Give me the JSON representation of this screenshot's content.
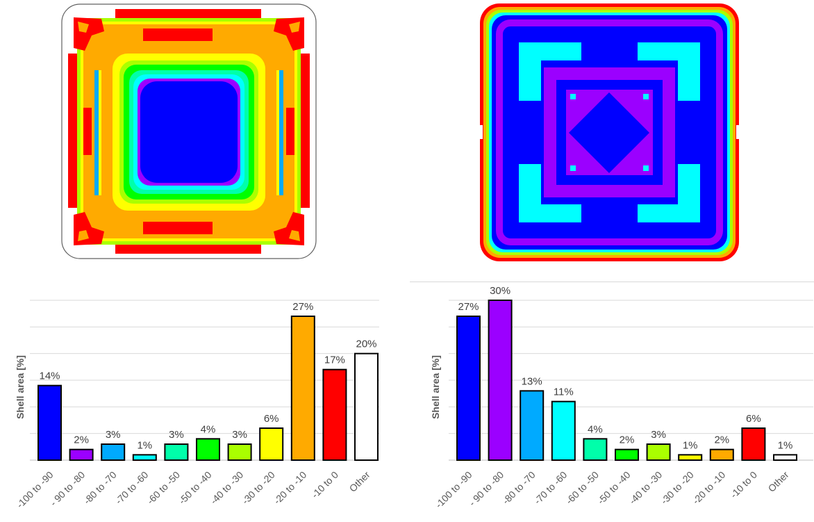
{
  "maps": [
    {
      "name": "left",
      "frame": true
    },
    {
      "name": "right",
      "frame": false
    }
  ],
  "chart_data": [
    {
      "type": "bar",
      "ylabel": "Shell area [%]",
      "ylim": [
        0,
        30
      ],
      "grid": true,
      "categories": [
        "-100 to -90",
        "- 90 to -80",
        "-80 to -70",
        "-70 to -60",
        "-60 to -50",
        "-50 to -40",
        "-40 to -30",
        "-30 to -20",
        "-20 to -10",
        "-10 to 0",
        "Other"
      ],
      "values": [
        14,
        2,
        3,
        1,
        3,
        4,
        3,
        6,
        27,
        17,
        20
      ],
      "labels": [
        "14%",
        "2%",
        "3%",
        "1%",
        "3%",
        "4%",
        "3%",
        "6%",
        "27%",
        "17%",
        "20%"
      ],
      "colors": [
        "#0000ff",
        "#9b00ff",
        "#00aaff",
        "#00ffff",
        "#00ffaa",
        "#00ff00",
        "#aaff00",
        "#ffff00",
        "#ffaa00",
        "#ff0000",
        "#ffffff"
      ]
    },
    {
      "type": "bar",
      "ylabel": "Shell area [%]",
      "ylim": [
        0,
        30
      ],
      "grid": true,
      "categories": [
        "-100 to -90",
        "- 90 to -80",
        "-80 to -70",
        "-70 to -60",
        "-60 to -50",
        "-50 to -40",
        "-40 to -30",
        "-30 to -20",
        "-20 to -10",
        "-10 to 0",
        "Other"
      ],
      "values": [
        27,
        30,
        13,
        11,
        4,
        2,
        3,
        1,
        2,
        6,
        1
      ],
      "labels": [
        "27%",
        "30%",
        "13%",
        "11%",
        "4%",
        "2%",
        "3%",
        "1%",
        "2%",
        "6%",
        "1%"
      ],
      "colors": [
        "#0000ff",
        "#9b00ff",
        "#00aaff",
        "#00ffff",
        "#00ffaa",
        "#00ff00",
        "#aaff00",
        "#ffff00",
        "#ffaa00",
        "#ff0000",
        "#ffffff"
      ]
    }
  ]
}
